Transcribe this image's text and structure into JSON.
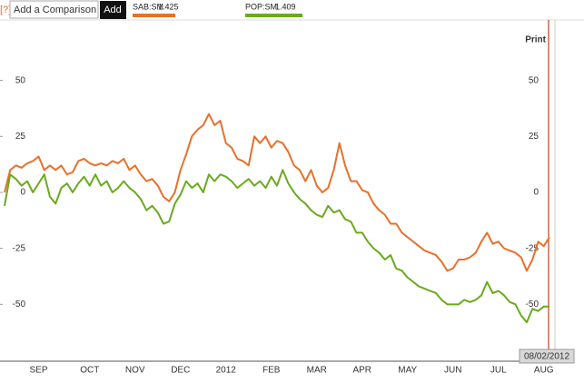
{
  "toolbar": {
    "help": "[?]",
    "input": "Add a Comparison",
    "button": "Add",
    "print": "Print"
  },
  "chart_data": {
    "type": "line",
    "categories": [
      null,
      null,
      null,
      null,
      null,
      null,
      "SEP",
      null,
      null,
      null,
      null,
      null,
      null,
      null,
      null,
      "OCT",
      null,
      null,
      null,
      null,
      null,
      null,
      null,
      "NOV",
      null,
      null,
      null,
      null,
      null,
      null,
      null,
      "DEC",
      null,
      null,
      null,
      null,
      null,
      null,
      null,
      "2012",
      null,
      null,
      null,
      null,
      null,
      null,
      null,
      "FEB",
      null,
      null,
      null,
      null,
      null,
      null,
      null,
      "MAR",
      null,
      null,
      null,
      null,
      null,
      null,
      null,
      "APR",
      null,
      null,
      null,
      null,
      null,
      null,
      null,
      "MAY",
      null,
      null,
      null,
      null,
      null,
      null,
      null,
      "JUN",
      null,
      null,
      null,
      null,
      null,
      null,
      null,
      "JUL",
      null,
      null,
      null,
      null,
      null,
      null,
      null,
      "AUG",
      null
    ],
    "series": [
      {
        "name": "SAB:SM",
        "price": 1.425,
        "color": "#e8702a",
        "values": [
          0,
          10,
          12,
          11,
          13,
          14,
          16,
          10,
          12,
          10,
          12,
          8,
          9,
          14,
          15,
          13,
          12,
          13,
          12,
          14,
          13,
          15,
          10,
          12,
          8,
          5,
          6,
          3,
          -2,
          -4,
          0,
          10,
          17,
          25,
          28,
          30,
          35,
          30,
          32,
          22,
          20,
          15,
          14,
          12,
          25,
          22,
          25,
          20,
          23,
          22,
          18,
          12,
          10,
          5,
          10,
          3,
          0,
          2,
          10,
          22,
          12,
          5,
          5,
          1,
          0,
          -5,
          -8,
          -10,
          -14,
          -14,
          -18,
          -20,
          -22,
          -24,
          -26,
          -27,
          -28,
          -31,
          -35,
          -34,
          -30,
          -30,
          -29,
          -27,
          -22,
          -18,
          -23,
          -22,
          -25,
          -26,
          -27,
          -29,
          -35,
          -30,
          -22,
          -24,
          -20
        ]
      },
      {
        "name": "POP:SM",
        "price": 1.409,
        "color": "#6aaa1e",
        "values": [
          -6,
          8,
          6,
          3,
          5,
          0,
          4,
          8,
          -2,
          -5,
          2,
          4,
          0,
          4,
          7,
          3,
          8,
          3,
          5,
          0,
          2,
          5,
          2,
          0,
          -3,
          -8,
          -6,
          -9,
          -14,
          -13,
          -5,
          -1,
          5,
          2,
          4,
          0,
          8,
          5,
          8,
          7,
          5,
          2,
          4,
          6,
          3,
          5,
          2,
          7,
          3,
          10,
          4,
          0,
          -3,
          -5,
          -8,
          -10,
          -11,
          -6,
          -9,
          -8,
          -12,
          -13,
          -18,
          -18,
          -22,
          -25,
          -27,
          -30,
          -28,
          -34,
          -35,
          -38,
          -40,
          -42,
          -43,
          -44,
          -45,
          -48,
          -50,
          -50,
          -50,
          -48,
          -49,
          -48,
          -46,
          -40,
          -45,
          -44,
          -46,
          -49,
          -50,
          -55,
          -58,
          -52,
          -53,
          -51,
          -51
        ]
      }
    ],
    "ylim": [
      -75,
      77
    ],
    "yticks": [
      50,
      25,
      0,
      -25,
      -50
    ],
    "grid": false,
    "cursor_label": "08/02/2012"
  }
}
